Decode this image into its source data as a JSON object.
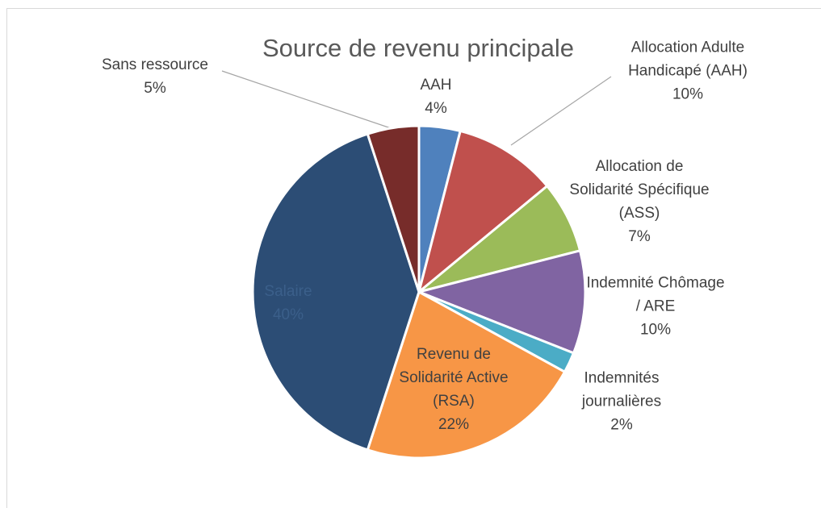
{
  "chart_data": {
    "type": "pie",
    "title": "Source de revenu principale",
    "categories": [
      "AAH",
      "Allocation Adulte Handicapé (AAH)",
      "Allocation de Solidarité Spécifique (ASS)",
      "Indemnité Chômage / ARE",
      "Indemnités journalières",
      "Revenu de Solidarité Active (RSA)",
      "Salaire",
      "Sans ressource"
    ],
    "values": [
      4,
      10,
      7,
      10,
      2,
      22,
      40,
      5
    ],
    "value_labels": [
      "4%",
      "10%",
      "7%",
      "10%",
      "2%",
      "22%",
      "40%",
      "5%"
    ],
    "colors": [
      "#4f81bd",
      "#c0504d",
      "#9bbb59",
      "#8064a2",
      "#4bacc6",
      "#f79646",
      "#2c4d75",
      "#772c2a"
    ]
  }
}
